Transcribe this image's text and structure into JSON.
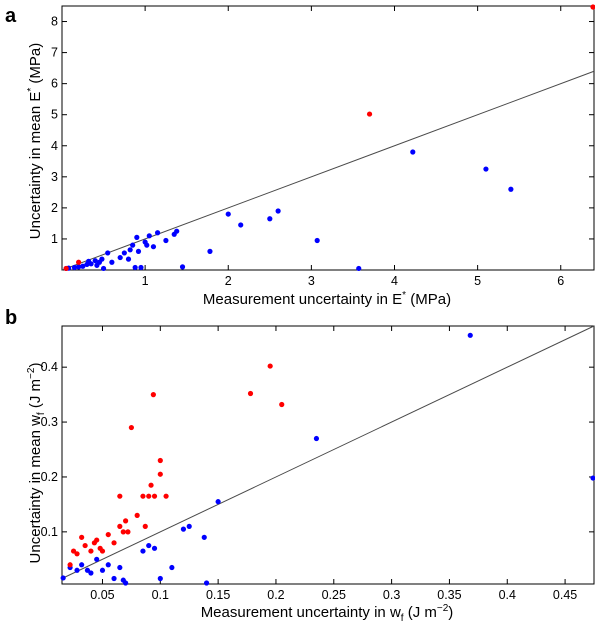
{
  "chart_data": [
    {
      "panel": "a",
      "type": "scatter",
      "xlabel": {
        "main": "Measurement uncertainty in E",
        "sup": "*",
        "tail": " (MPa)"
      },
      "ylabel": {
        "main": "Uncertainty in mean E",
        "sup": "*",
        "tail": " (MPa)"
      },
      "xlim": [
        0,
        6.4
      ],
      "ylim": [
        0,
        8.5
      ],
      "xticks": [
        1,
        2,
        3,
        4,
        5,
        6
      ],
      "yticks": [
        1,
        2,
        3,
        4,
        5,
        6,
        7,
        8
      ],
      "reference_line": [
        [
          0,
          0
        ],
        [
          6.4,
          6.4
        ]
      ],
      "grid": false,
      "colors": {
        "blue": "#0000ff",
        "red": "#ff0000",
        "line": "#4a4a4a"
      },
      "series": [
        {
          "color": "blue",
          "points": [
            [
              0.05,
              0.05
            ],
            [
              0.08,
              0.06
            ],
            [
              0.15,
              0.08
            ],
            [
              0.2,
              0.1
            ],
            [
              0.25,
              0.12
            ],
            [
              0.3,
              0.18
            ],
            [
              0.32,
              0.28
            ],
            [
              0.35,
              0.2
            ],
            [
              0.4,
              0.3
            ],
            [
              0.42,
              0.15
            ],
            [
              0.45,
              0.25
            ],
            [
              0.48,
              0.35
            ],
            [
              0.5,
              0.05
            ],
            [
              0.55,
              0.55
            ],
            [
              0.6,
              0.25
            ],
            [
              0.7,
              0.4
            ],
            [
              0.75,
              0.55
            ],
            [
              0.8,
              0.35
            ],
            [
              0.82,
              0.65
            ],
            [
              0.85,
              0.8
            ],
            [
              0.88,
              0.08
            ],
            [
              0.9,
              1.05
            ],
            [
              0.92,
              0.6
            ],
            [
              0.95,
              0.08
            ],
            [
              1.0,
              0.9
            ],
            [
              1.02,
              0.8
            ],
            [
              1.05,
              1.1
            ],
            [
              1.1,
              0.75
            ],
            [
              1.15,
              1.2
            ],
            [
              1.25,
              0.95
            ],
            [
              1.35,
              1.15
            ],
            [
              1.38,
              1.25
            ],
            [
              1.45,
              0.1
            ],
            [
              1.78,
              0.6
            ],
            [
              2.0,
              1.8
            ],
            [
              2.15,
              1.45
            ],
            [
              2.5,
              1.65
            ],
            [
              2.6,
              1.9
            ],
            [
              3.07,
              0.95
            ],
            [
              3.57,
              0.05
            ],
            [
              4.22,
              3.8
            ],
            [
              5.1,
              3.25
            ],
            [
              5.4,
              2.6
            ]
          ]
        },
        {
          "color": "red",
          "points": [
            [
              0.05,
              0.05
            ],
            [
              0.2,
              0.25
            ],
            [
              3.7,
              5.02
            ],
            [
              6.4,
              8.5
            ]
          ]
        }
      ]
    },
    {
      "panel": "b",
      "type": "scatter",
      "xlabel": {
        "main": "Measurement uncertainty in w",
        "sub": "f",
        "tail": " (J m",
        "sup": "−2",
        "end": ")"
      },
      "ylabel": {
        "main": "Uncertainty in mean w",
        "sub": "f",
        "tail": " (J m",
        "sup": "−2",
        "end": ")"
      },
      "xlim": [
        0.015,
        0.475
      ],
      "ylim": [
        0.005,
        0.475
      ],
      "xticks": [
        0.05,
        0.1,
        0.15,
        0.2,
        0.25,
        0.3,
        0.35,
        0.4,
        0.45
      ],
      "xtick_labels": [
        "0.05",
        "0.1",
        "0.15",
        "0.2",
        "0.25",
        "0.3",
        "0.35",
        "0.4",
        "0.45"
      ],
      "yticks": [
        0.1,
        0.2,
        0.3,
        0.4
      ],
      "ytick_labels": [
        "0.1",
        "0.2",
        "0.3",
        "0.4"
      ],
      "reference_line": [
        [
          0.015,
          0.015
        ],
        [
          0.475,
          0.475
        ]
      ],
      "grid": false,
      "colors": {
        "blue": "#0000ff",
        "red": "#ff0000",
        "line": "#4a4a4a"
      },
      "series": [
        {
          "color": "blue",
          "points": [
            [
              0.016,
              0.016
            ],
            [
              0.022,
              0.035
            ],
            [
              0.028,
              0.03
            ],
            [
              0.032,
              0.04
            ],
            [
              0.037,
              0.03
            ],
            [
              0.04,
              0.025
            ],
            [
              0.045,
              0.05
            ],
            [
              0.05,
              0.03
            ],
            [
              0.055,
              0.04
            ],
            [
              0.06,
              0.015
            ],
            [
              0.065,
              0.035
            ],
            [
              0.068,
              0.012
            ],
            [
              0.07,
              0.005
            ],
            [
              0.085,
              0.065
            ],
            [
              0.09,
              0.075
            ],
            [
              0.095,
              0.07
            ],
            [
              0.1,
              0.015
            ],
            [
              0.11,
              0.035
            ],
            [
              0.12,
              0.105
            ],
            [
              0.125,
              0.11
            ],
            [
              0.138,
              0.09
            ],
            [
              0.14,
              0.005
            ],
            [
              0.15,
              0.155
            ],
            [
              0.235,
              0.27
            ],
            [
              0.368,
              0.458
            ],
            [
              0.475,
              0.198
            ]
          ]
        },
        {
          "color": "red",
          "points": [
            [
              0.022,
              0.04
            ],
            [
              0.025,
              0.065
            ],
            [
              0.028,
              0.06
            ],
            [
              0.032,
              0.09
            ],
            [
              0.035,
              0.075
            ],
            [
              0.04,
              0.065
            ],
            [
              0.043,
              0.08
            ],
            [
              0.045,
              0.085
            ],
            [
              0.048,
              0.07
            ],
            [
              0.05,
              0.065
            ],
            [
              0.055,
              0.095
            ],
            [
              0.06,
              0.08
            ],
            [
              0.065,
              0.11
            ],
            [
              0.068,
              0.1
            ],
            [
              0.07,
              0.12
            ],
            [
              0.072,
              0.1
            ],
            [
              0.075,
              0.29
            ],
            [
              0.08,
              0.13
            ],
            [
              0.085,
              0.165
            ],
            [
              0.087,
              0.11
            ],
            [
              0.09,
              0.165
            ],
            [
              0.092,
              0.185
            ],
            [
              0.094,
              0.35
            ],
            [
              0.095,
              0.165
            ],
            [
              0.1,
              0.23
            ],
            [
              0.1,
              0.205
            ],
            [
              0.105,
              0.165
            ],
            [
              0.178,
              0.352
            ],
            [
              0.195,
              0.402
            ],
            [
              0.205,
              0.332
            ],
            [
              0.065,
              0.165
            ]
          ]
        }
      ]
    }
  ]
}
